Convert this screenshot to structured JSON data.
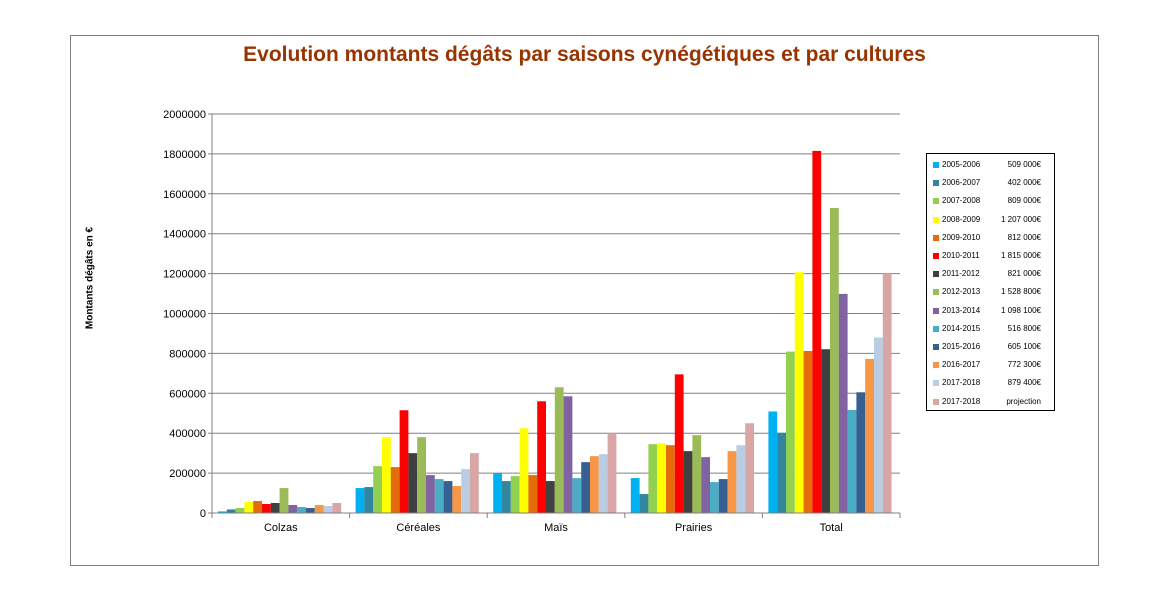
{
  "chart_data": {
    "type": "bar",
    "title": "Evolution montants dégâts par saisons cynégétiques et par cultures",
    "xlabel": "",
    "ylabel": "Montants dégâts en €",
    "ylim": [
      0,
      2000000
    ],
    "yticks": [
      "0",
      "200000",
      "400000",
      "600000",
      "800000",
      "1000000",
      "1200000",
      "1400000",
      "1600000",
      "1800000",
      "2000000"
    ],
    "grid": true,
    "legend_position": "right",
    "categories": [
      "Colzas",
      "Céréales",
      "Maïs",
      "Prairies",
      "Total"
    ],
    "series": [
      {
        "name": "2005-2006",
        "amount": "509 000€",
        "color": "#00b0f0",
        "values": [
          8000,
          125000,
          200000,
          175000,
          509000
        ]
      },
      {
        "name": "2006-2007",
        "amount": "402 000€",
        "color": "#31859c",
        "values": [
          18000,
          130000,
          160000,
          95000,
          402000
        ]
      },
      {
        "name": "2007-2008",
        "amount": "809 000€",
        "color": "#92d050",
        "values": [
          25000,
          235000,
          185000,
          345000,
          809000
        ]
      },
      {
        "name": "2008-2009",
        "amount": "1 207 000€",
        "color": "#ffff00",
        "values": [
          55000,
          380000,
          425000,
          350000,
          1207000
        ]
      },
      {
        "name": "2009-2010",
        "amount": "812 000€",
        "color": "#e46c0a",
        "values": [
          60000,
          230000,
          190000,
          340000,
          812000
        ]
      },
      {
        "name": "2010-2011",
        "amount": "1 815 000€",
        "color": "#ff0000",
        "values": [
          45000,
          515000,
          560000,
          695000,
          1815000
        ]
      },
      {
        "name": "2011-2012",
        "amount": "821 000€",
        "color": "#404040",
        "values": [
          50000,
          300000,
          160000,
          310000,
          821000
        ]
      },
      {
        "name": "2012-2013",
        "amount": "1 528 800€",
        "color": "#9bbb59",
        "values": [
          125000,
          380000,
          630000,
          390000,
          1528800
        ]
      },
      {
        "name": "2013-2014",
        "amount": "1 098 100€",
        "color": "#8064a2",
        "values": [
          40000,
          190000,
          585000,
          280000,
          1098100
        ]
      },
      {
        "name": "2014-2015",
        "amount": "516 800€",
        "color": "#4bacc6",
        "values": [
          30000,
          170000,
          175000,
          155000,
          516800
        ]
      },
      {
        "name": "2015-2016",
        "amount": "605 100€",
        "color": "#376092",
        "values": [
          25000,
          160000,
          255000,
          170000,
          605100
        ]
      },
      {
        "name": "2016-2017",
        "amount": "772 300€",
        "color": "#f79646",
        "values": [
          40000,
          135000,
          285000,
          310000,
          772300
        ]
      },
      {
        "name": "2017-2018",
        "amount": "879 400€",
        "color": "#b9cde5",
        "values": [
          35000,
          220000,
          295000,
          340000,
          879400
        ]
      },
      {
        "name": "2017-2018",
        "amount": "projection",
        "color": "#d9a6a6",
        "values": [
          50000,
          300000,
          400000,
          450000,
          1200000
        ]
      }
    ]
  }
}
